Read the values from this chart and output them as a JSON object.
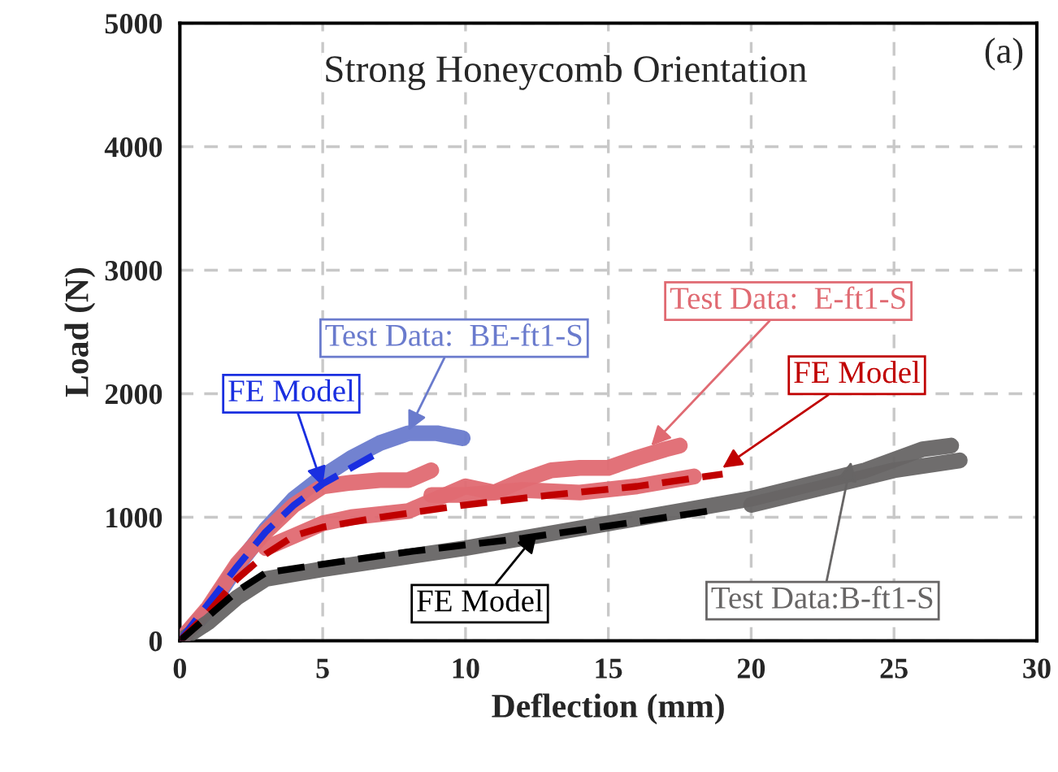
{
  "chart_data": {
    "type": "line",
    "title": "Strong Honeycomb Orientation",
    "xlabel": "Deflection (mm)",
    "ylabel": "Load (N)",
    "xlim": [
      0,
      30
    ],
    "xticks": [
      0,
      5,
      10,
      15,
      20,
      25,
      30
    ],
    "ylim": [
      0,
      5000
    ],
    "yticks": [
      0,
      1000,
      2000,
      3000,
      4000,
      5000
    ],
    "grid": true,
    "marker": "none",
    "series": [
      {
        "color": "#6a7bcd",
        "line_style": "solid",
        "x": [
          0,
          1,
          2,
          3,
          4,
          5,
          6,
          7,
          8,
          9,
          9.9
        ],
        "values": [
          0,
          250,
          600,
          900,
          1150,
          1330,
          1480,
          1600,
          1680,
          1680,
          1640
        ]
      },
      {
        "color": "#e06a72",
        "line_style": "solid",
        "x": [
          0,
          1,
          2,
          3,
          4,
          5,
          6,
          7,
          8,
          8.8
        ],
        "values": [
          0,
          270,
          620,
          880,
          1100,
          1250,
          1280,
          1300,
          1300,
          1380
        ]
      },
      {
        "color": "#e06a72",
        "line_style": "solid",
        "x": [
          3,
          4,
          5,
          6,
          8,
          9,
          10,
          11,
          12,
          13,
          14,
          15,
          16,
          17,
          17.5
        ],
        "values": [
          750,
          850,
          950,
          1000,
          1050,
          1150,
          1250,
          1200,
          1300,
          1380,
          1400,
          1400,
          1480,
          1550,
          1580
        ]
      },
      {
        "color": "#e06a72",
        "line_style": "solid",
        "x": [
          8.8,
          10,
          12,
          14,
          16,
          18
        ],
        "values": [
          1180,
          1180,
          1220,
          1200,
          1250,
          1330
        ]
      },
      {
        "color": "#676565",
        "line_style": "solid",
        "x": [
          0,
          1,
          2,
          3,
          5,
          10,
          15,
          20,
          24,
          26,
          27
        ],
        "values": [
          0,
          150,
          350,
          500,
          580,
          750,
          950,
          1150,
          1380,
          1550,
          1580
        ]
      },
      {
        "color": "#676565",
        "line_style": "solid",
        "x": [
          20,
          25,
          27.3
        ],
        "values": [
          1100,
          1380,
          1460
        ]
      },
      {
        "color": "#1a2fe0",
        "line_style": "dashed",
        "x": [
          0,
          1,
          2,
          3,
          4,
          5,
          6,
          7
        ],
        "values": [
          0,
          300,
          600,
          880,
          1100,
          1270,
          1400,
          1530
        ]
      },
      {
        "color": "#c00000",
        "line_style": "dashed",
        "x": [
          0,
          1,
          2,
          3,
          4,
          5,
          7,
          10,
          13,
          16,
          19
        ],
        "values": [
          0,
          230,
          500,
          700,
          850,
          920,
          1000,
          1100,
          1180,
          1250,
          1350
        ]
      },
      {
        "color": "#000000",
        "line_style": "dashed",
        "x": [
          0,
          1,
          2,
          3,
          5,
          8,
          12,
          15,
          18.5
        ],
        "values": [
          0,
          200,
          400,
          550,
          620,
          720,
          830,
          930,
          1050
        ]
      }
    ],
    "annotations": [
      "(a)",
      {
        "text": "Test Data:  BE-ft1-S",
        "x": 8,
        "y": 1700
      },
      {
        "text": "FE Model",
        "x": 5,
        "y": 1250
      },
      {
        "text": "Test Data:  E-ft1-S",
        "x": 16.5,
        "y": 1580
      },
      {
        "text": "FE Model",
        "x": 19,
        "y": 1400
      },
      {
        "text": "FE Model",
        "x": 12.5,
        "y": 870
      },
      {
        "text": "Test Data:B-ft1-S",
        "x": 23.5,
        "y": 1450
      }
    ]
  }
}
